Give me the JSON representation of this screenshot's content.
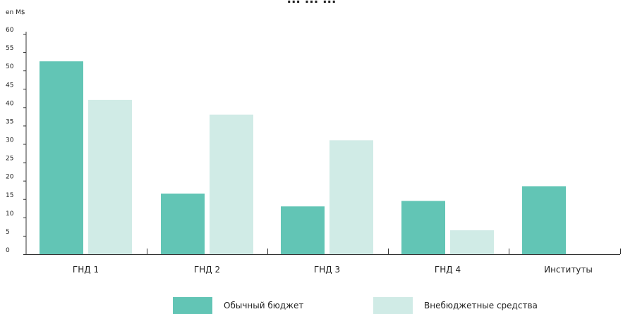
{
  "chart_data": {
    "type": "bar",
    "title": "... ... ...",
    "unit_label": "en M$",
    "categories": [
      "ГНД 1",
      "ГНД 2",
      "ГНД 3",
      "ГНД 4",
      "Институты"
    ],
    "series": [
      {
        "name": "Обычный бюджет",
        "values": [
          52.5,
          16.5,
          13,
          14.5,
          18.5
        ],
        "color": "#62c5b5"
      },
      {
        "name": "Внебюджетные средства",
        "values": [
          42,
          38,
          31,
          6.5,
          0
        ],
        "color": "#d0ebe6"
      }
    ],
    "ylim": [
      0,
      60
    ],
    "yticks": [
      "60",
      "55",
      "50",
      "45",
      "40",
      "35",
      "30",
      "25",
      "20",
      "15",
      "10",
      "5",
      "0"
    ],
    "grid": false,
    "legend_position": "bottom"
  }
}
